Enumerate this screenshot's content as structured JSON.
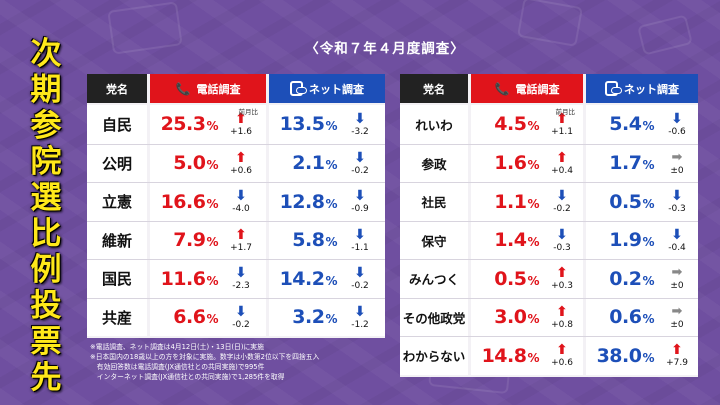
{
  "title_chars": [
    "次",
    "期",
    "参",
    "院",
    "選",
    "比",
    "例",
    "投",
    "票",
    "先"
  ],
  "subtitle": "〈令和７年４月度調査〉",
  "headers": {
    "party": "党名",
    "phone": "電話調査",
    "net": "ネット調査",
    "prev": "前月比"
  },
  "left_rows": [
    {
      "party": "自民",
      "phone": "25.3",
      "phone_dir": "up",
      "phone_delta": "+1.6",
      "net": "13.5",
      "net_dir": "down",
      "net_delta": "-3.2"
    },
    {
      "party": "公明",
      "phone": "5.0",
      "phone_dir": "up",
      "phone_delta": "+0.6",
      "net": "2.1",
      "net_dir": "down",
      "net_delta": "-0.2"
    },
    {
      "party": "立憲",
      "phone": "16.6",
      "phone_dir": "down",
      "phone_delta": "-4.0",
      "net": "12.8",
      "net_dir": "down",
      "net_delta": "-0.9"
    },
    {
      "party": "維新",
      "phone": "7.9",
      "phone_dir": "up",
      "phone_delta": "+1.7",
      "net": "5.8",
      "net_dir": "down",
      "net_delta": "-1.1"
    },
    {
      "party": "国民",
      "phone": "11.6",
      "phone_dir": "down",
      "phone_delta": "-2.3",
      "net": "14.2",
      "net_dir": "down",
      "net_delta": "-0.2"
    },
    {
      "party": "共産",
      "phone": "6.6",
      "phone_dir": "down",
      "phone_delta": "-0.2",
      "net": "3.2",
      "net_dir": "down",
      "net_delta": "-1.2"
    }
  ],
  "right_rows": [
    {
      "party": "れいわ",
      "phone": "4.5",
      "phone_dir": "up",
      "phone_delta": "+1.1",
      "net": "5.4",
      "net_dir": "down",
      "net_delta": "-0.6"
    },
    {
      "party": "参政",
      "phone": "1.6",
      "phone_dir": "up",
      "phone_delta": "+0.4",
      "net": "1.7",
      "net_dir": "flat",
      "net_delta": "±0"
    },
    {
      "party": "社民",
      "phone": "1.1",
      "phone_dir": "down",
      "phone_delta": "-0.2",
      "net": "0.5",
      "net_dir": "down",
      "net_delta": "-0.3"
    },
    {
      "party": "保守",
      "phone": "1.4",
      "phone_dir": "down",
      "phone_delta": "-0.3",
      "net": "1.9",
      "net_dir": "down",
      "net_delta": "-0.4"
    },
    {
      "party": "みんつく",
      "phone": "0.5",
      "phone_dir": "up",
      "phone_delta": "+0.3",
      "net": "0.2",
      "net_dir": "flat",
      "net_delta": "±0"
    },
    {
      "party": "その他政党",
      "phone": "3.0",
      "phone_dir": "up",
      "phone_delta": "+0.8",
      "net": "0.6",
      "net_dir": "flat",
      "net_delta": "±0"
    },
    {
      "party": "わからない",
      "phone": "14.8",
      "phone_dir": "up",
      "phone_delta": "+0.6",
      "net": "38.0",
      "net_dir": "up",
      "net_delta": "+7.9"
    }
  ],
  "pct_symbol": "%",
  "notes": [
    "※電話調査、ネット調査は4月12日(土)・13日(日)に実施",
    "※日本国内の18歳以上の方を対象に実施。数字は小数第2位以下を四捨五入",
    "　有効回答数は電話調査(JX通信社との共同実施)で995件",
    "　インターネット調査(JX通信社との共同実施)で1,285件を取得"
  ],
  "colors": {
    "phone": "#e0141b",
    "net": "#1d4fb8",
    "title": "#ffe81a",
    "background": "#6f4fa0"
  }
}
